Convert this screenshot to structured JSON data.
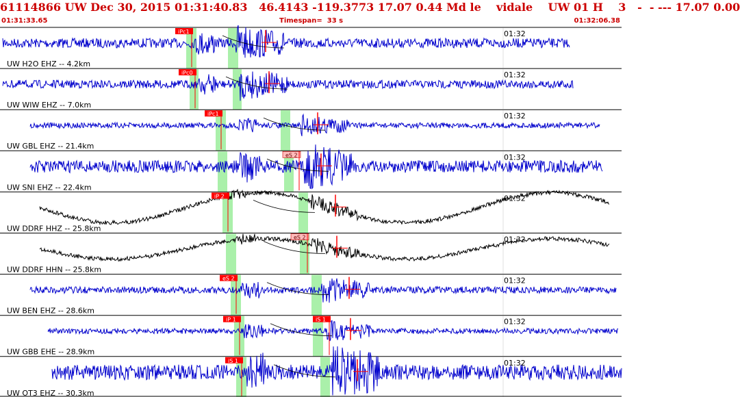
{
  "header": {
    "title": "61114866 UW Dec 30, 2015 01:31:40.83   46.4143 -119.3773 17.07 0.44 Md le    vidale    UW 01 H    3   -  - --- 17.07 0.00",
    "start_time": "01:31:33.65",
    "timespan": "Timespan=  33 s",
    "end_time": "01:32:06.38"
  },
  "colors": {
    "title_red": "#cc0000",
    "trace_blue": "#0000cc",
    "trace_black": "#000000",
    "window_green": "#aaf0aa",
    "pick_red": "#ff0000",
    "pick_pink": "#ffbbbb"
  },
  "traces": [
    {
      "label": "UW H2O EHZ -- 4.2km",
      "time": "01:32",
      "color": "blue",
      "picks": [
        {
          "text": "iPc1",
          "style": "red"
        }
      ],
      "amp": 7,
      "long_period": 0,
      "onset": 285,
      "s_onset": 345
    },
    {
      "label": "UW WIW EHZ -- 7.0km",
      "time": "01:32",
      "color": "blue",
      "picks": [
        {
          "text": "iPc0",
          "style": "red"
        }
      ],
      "amp": 6,
      "long_period": 0,
      "onset": 290,
      "s_onset": 350
    },
    {
      "label": "UW GBL EHZ -- 21.4km",
      "time": "01:32",
      "color": "blue",
      "picks": [
        {
          "text": "iPc1",
          "style": "red"
        }
      ],
      "amp": 4,
      "long_period": 0,
      "onset": 345,
      "s_onset": 440
    },
    {
      "label": "UW SNI EHZ -- 22.4km",
      "time": "01:32",
      "color": "blue",
      "picks": [
        {
          "text": "eS 2",
          "style": "pink"
        }
      ],
      "amp": 9,
      "long_period": 0,
      "onset": 350,
      "s_onset": 445
    },
    {
      "label": "UW DDRF HHZ -- 25.8km",
      "time": "01:32",
      "color": "black",
      "picks": [
        {
          "text": "iP 2",
          "style": "red"
        }
      ],
      "amp": 3,
      "long_period": 22,
      "onset": 330,
      "s_onset": 455
    },
    {
      "label": "UW DDRF HHN -- 25.8km",
      "time": "01:32",
      "color": "black",
      "picks": [
        {
          "text": "eS 2",
          "style": "pink"
        }
      ],
      "amp": 3,
      "long_period": 15,
      "onset": 345,
      "s_onset": 455
    },
    {
      "label": "UW BEN EHZ -- 28.6km",
      "time": "01:32",
      "color": "blue",
      "picks": [
        {
          "text": "eS 2",
          "style": "red"
        }
      ],
      "amp": 5,
      "long_period": 0,
      "onset": 350,
      "s_onset": 470
    },
    {
      "label": "UW GBB EHE -- 28.9km",
      "time": "01:32",
      "color": "blue",
      "picks": [
        {
          "text": "iP 1",
          "style": "red"
        },
        {
          "text": "iS 1",
          "style": "red"
        }
      ],
      "amp": 4,
      "long_period": 0,
      "onset": 355,
      "s_onset": 475
    },
    {
      "label": "UW OT3 EHZ -- 30.3km",
      "time": "01:32",
      "color": "blue",
      "picks": [
        {
          "text": "iS 1",
          "style": "red"
        }
      ],
      "amp": 11,
      "long_period": 0,
      "onset": 360,
      "s_onset": 485
    }
  ]
}
